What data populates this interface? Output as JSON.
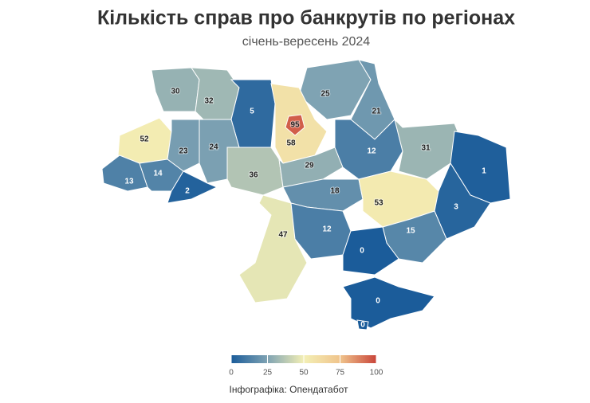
{
  "map": {
    "title": "Кількість справ про банкрутів по регіонах",
    "subtitle": "січень-вересень 2024",
    "regions": {
      "values": [
        30,
        32,
        5,
        25,
        21,
        58,
        95,
        52,
        23,
        24,
        36,
        29,
        12,
        31,
        13,
        14,
        2,
        18,
        53,
        1,
        3,
        47,
        12,
        15,
        0,
        0,
        0
      ]
    },
    "colorbar": {
      "lim": [
        0,
        100
      ],
      "ticks": [
        0,
        25,
        50,
        75,
        100
      ],
      "colors": [
        "#1b5c9a",
        "#7fa3b3",
        "#f3efb5",
        "#f0c48c",
        "#c9453a"
      ]
    },
    "source": "Інфографіка: Опендатабот"
  }
}
